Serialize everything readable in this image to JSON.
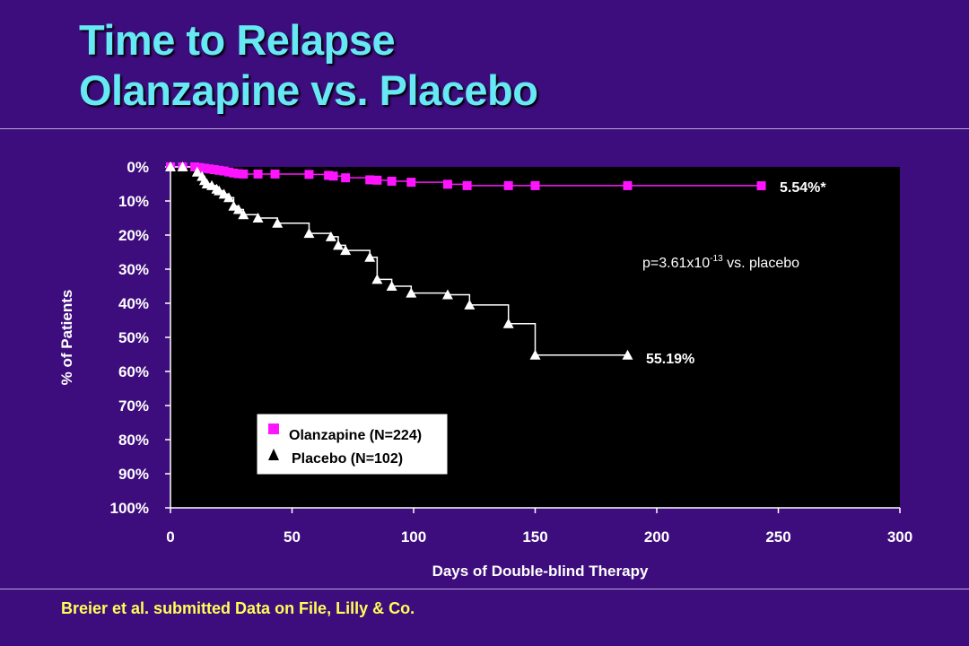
{
  "slide": {
    "title_line1": "Time to Relapse",
    "title_line2": "Olanzapine vs. Placebo",
    "footer": "Breier et al. submitted  Data on File, Lilly & Co.",
    "colors": {
      "background": "#3d0d7d",
      "title": "#66e8f5",
      "footer": "#ffff55",
      "plot_background": "#000000"
    }
  },
  "chart_data": {
    "type": "line",
    "xlabel": "Days of Double-blind Therapy",
    "ylabel": "% of Patients",
    "xlim": [
      0,
      300
    ],
    "ylim": [
      0,
      100
    ],
    "y_inverted": true,
    "x_ticks": [
      "0",
      "50",
      "100",
      "150",
      "200",
      "250",
      "300"
    ],
    "y_ticks": [
      "0%",
      "10%",
      "20%",
      "30%",
      "40%",
      "50%",
      "60%",
      "70%",
      "80%",
      "90%",
      "100%"
    ],
    "grid": false,
    "legend_position": "lower-left",
    "series": [
      {
        "name": "Olanzapine (N=224)",
        "marker": "square",
        "color": "#ff14ff",
        "x": [
          0,
          5,
          10,
          12,
          14,
          16,
          18,
          20,
          22,
          24,
          26,
          28,
          30,
          36,
          43,
          57,
          65,
          67,
          72,
          82,
          85,
          91,
          99,
          114,
          122,
          139,
          150,
          188,
          243
        ],
        "y": [
          0,
          0,
          0,
          0.2,
          0.4,
          0.6,
          0.8,
          1.0,
          1.2,
          1.5,
          1.8,
          2.0,
          2.1,
          2.1,
          2.1,
          2.2,
          2.5,
          2.7,
          3.2,
          3.8,
          3.9,
          4.2,
          4.5,
          5.1,
          5.5,
          5.5,
          5.5,
          5.5,
          5.54
        ]
      },
      {
        "name": "Placebo (N=102)",
        "marker": "triangle",
        "color": "#ffffff",
        "x": [
          0,
          5,
          11,
          13,
          14,
          15,
          17,
          19,
          20,
          22,
          24,
          26,
          28,
          30,
          36,
          44,
          57,
          66,
          69,
          72,
          82,
          85,
          91,
          99,
          114,
          123,
          139,
          150,
          188
        ],
        "y": [
          0,
          0,
          1.5,
          2.8,
          4.0,
          5.0,
          5.5,
          6.5,
          7.0,
          8.0,
          9.0,
          11.5,
          12.5,
          14.0,
          15.0,
          16.5,
          19.5,
          20.5,
          23.0,
          24.5,
          26.5,
          33.0,
          35.0,
          37.0,
          37.5,
          40.5,
          46.0,
          55.2,
          55.19
        ]
      }
    ],
    "annotations": {
      "olanzapine_end_label": "5.54%*",
      "placebo_end_label": "55.19%",
      "p_value_prefix": "p=3.61x10",
      "p_value_exponent": "-13",
      "p_value_suffix": " vs. placebo"
    },
    "legend": {
      "olanzapine": "Olanzapine (N=224)",
      "placebo": "Placebo (N=102)"
    }
  }
}
